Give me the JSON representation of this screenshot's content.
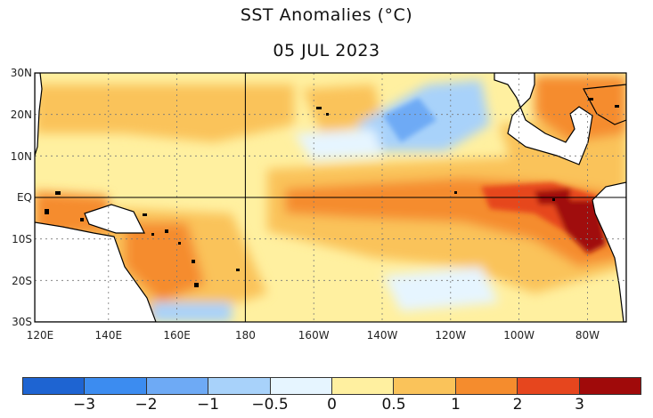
{
  "title": "SST Anomalies (°C)",
  "date": "05 JUL 2023",
  "map": {
    "lat_labels": [
      "30N",
      "20N",
      "10N",
      "EQ",
      "10S",
      "20S",
      "30S"
    ],
    "lon_labels": [
      "120E",
      "140E",
      "160E",
      "180",
      "160W",
      "140W",
      "120W",
      "100W",
      "80W"
    ],
    "land_color": "#ffffff",
    "coast_color": "#000000",
    "grid": "dotted",
    "region": "Tropical Pacific"
  },
  "colorbar": {
    "colors": [
      "#1e64d2",
      "#3c8cf0",
      "#6eaaf5",
      "#a8d2fa",
      "#e6f5ff",
      "#fff0a0",
      "#fac35a",
      "#f58c2d",
      "#e6461e",
      "#a00a0a"
    ],
    "labels": [
      "−3",
      "−2",
      "−1",
      "−0.5",
      "0",
      "0.5",
      "1",
      "2",
      "3"
    ]
  }
}
